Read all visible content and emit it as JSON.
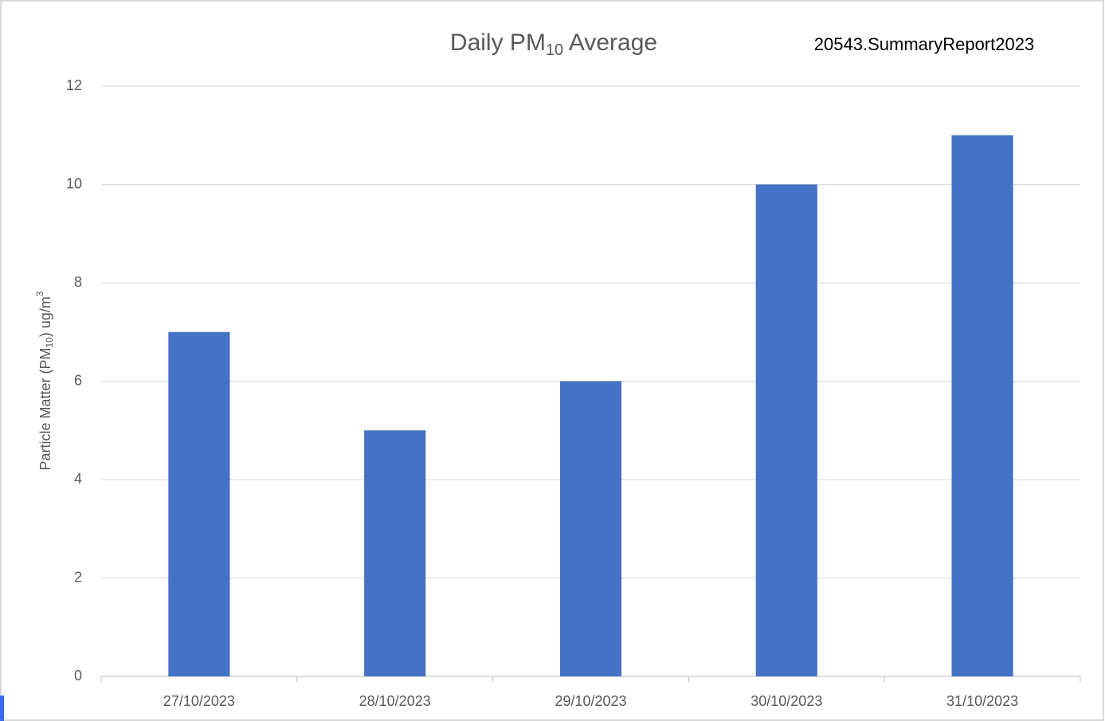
{
  "chart_data": {
    "type": "bar",
    "title": [
      "Daily PM",
      "10",
      " Average"
    ],
    "annotation": "20543.SummaryReport2023",
    "y_label": [
      "Particle Matter (PM",
      "10",
      ") ug/m",
      "3"
    ],
    "categories": [
      "27/10/2023",
      "28/10/2023",
      "29/10/2023",
      "30/10/2023",
      "31/10/2023"
    ],
    "values": [
      7,
      5,
      6,
      10,
      11
    ],
    "color": "#4472c4",
    "ylim": [
      0,
      12
    ],
    "yticks": [
      0,
      2,
      4,
      6,
      8,
      10,
      12
    ],
    "grid": true
  }
}
